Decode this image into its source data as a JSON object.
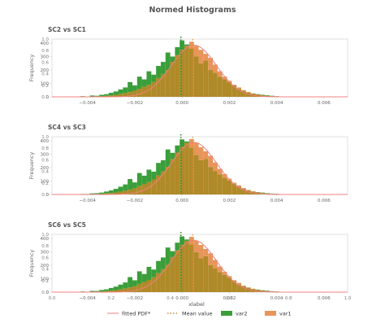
{
  "figure": {
    "title": "Normed Histograms",
    "xlabel": "xlabel",
    "legend": {
      "items": [
        {
          "label": "fitted PDF*",
          "kind": "line",
          "color": "#f08080"
        },
        {
          "label": "Mean value",
          "kind": "dotted",
          "color": "#e08a3c"
        },
        {
          "label": "var2",
          "kind": "patch",
          "color": "#3a9e3a"
        },
        {
          "label": "var1",
          "kind": "patch",
          "color": "#e8955a"
        }
      ]
    }
  },
  "colors": {
    "var2": "#3a9e3a",
    "var1": "#e8955a",
    "overlap": "#b08a28",
    "pdf": "#f08080",
    "mean2": "#2e8b2e",
    "mean1": "#e08a3c",
    "axis": "#cccccc",
    "tick_text": "#666666",
    "title_text": "#555555"
  },
  "chart_data": [
    {
      "type": "bar",
      "title": "SC2 vs SC1",
      "ylabel": "Frequency",
      "xlim": [
        -0.0055,
        0.007
      ],
      "ylim": [
        0,
        430
      ],
      "xticks": [
        -0.004,
        -0.002,
        0.0,
        0.002,
        0.004,
        0.006
      ],
      "xtick_labels": [
        "−0.004",
        "−0.002",
        "0.000",
        "0.002",
        "0.004",
        "0.006"
      ],
      "yticks": [
        0,
        100,
        200,
        300,
        400
      ],
      "ytick_labels": [
        "0",
        "100",
        "200",
        "300",
        "400"
      ],
      "secondary_yticks": [
        0.0,
        0.2,
        0.4,
        0.6,
        0.8,
        1.0
      ],
      "secondary_ytick_labels": [
        "0.0",
        "0.2",
        "0.4",
        "0.6",
        "0.8",
        "1.0"
      ],
      "bin_width": 0.0002,
      "bin_centers": [
        -0.005,
        -0.0042,
        -0.004,
        -0.0038,
        -0.0036,
        -0.0034,
        -0.0032,
        -0.003,
        -0.0028,
        -0.0026,
        -0.0024,
        -0.0022,
        -0.002,
        -0.0018,
        -0.0016,
        -0.0014,
        -0.0012,
        -0.001,
        -0.0008,
        -0.0006,
        -0.0004,
        -0.0002,
        0.0,
        0.0002,
        0.0004,
        0.0006,
        0.0008,
        0.001,
        0.0012,
        0.0014,
        0.0016,
        0.0018,
        0.002,
        0.0022,
        0.0024,
        0.0026,
        0.0028,
        0.003,
        0.0032,
        0.0034,
        0.0036,
        0.0038,
        0.004,
        0.0042,
        0.0044,
        0.0046,
        0.0048,
        0.0065
      ],
      "series": [
        {
          "name": "var2",
          "values": [
            2,
            5,
            3,
            10,
            8,
            15,
            20,
            30,
            40,
            55,
            70,
            110,
            85,
            150,
            130,
            190,
            165,
            230,
            260,
            330,
            300,
            370,
            420,
            390,
            360,
            300,
            250,
            270,
            200,
            180,
            150,
            130,
            110,
            85,
            60,
            45,
            35,
            25,
            20,
            15,
            12,
            8,
            5,
            3,
            2,
            2,
            1,
            3
          ]
        },
        {
          "name": "var1",
          "values": [
            1,
            2,
            2,
            3,
            4,
            6,
            8,
            10,
            15,
            20,
            28,
            35,
            45,
            60,
            75,
            90,
            110,
            140,
            170,
            200,
            260,
            310,
            350,
            380,
            410,
            380,
            350,
            320,
            290,
            240,
            190,
            150,
            120,
            90,
            70,
            50,
            35,
            25,
            18,
            12,
            8,
            5,
            4,
            2,
            1,
            1,
            0,
            0
          ]
        }
      ],
      "fitted_pdf": {
        "mean": 0.0005,
        "std": 0.00095,
        "peak": 385
      },
      "means": {
        "var2": -5e-05,
        "var1": 0.00045
      }
    },
    {
      "type": "bar",
      "title": "SC4 vs SC3",
      "ylabel": "Frequency",
      "xlim": [
        -0.0055,
        0.007
      ],
      "ylim": [
        0,
        430
      ],
      "xticks": [
        -0.004,
        -0.002,
        0.0,
        0.002,
        0.004,
        0.006
      ],
      "xtick_labels": [
        "−0.004",
        "−0.002",
        "0.000",
        "0.002",
        "0.004",
        "0.006"
      ],
      "yticks": [
        0,
        100,
        200,
        300,
        400
      ],
      "ytick_labels": [
        "0",
        "100",
        "200",
        "300",
        "400"
      ],
      "secondary_yticks": [
        0.0,
        0.2,
        0.4,
        0.6,
        0.8,
        1.0
      ],
      "secondary_ytick_labels": [
        "0.0",
        "0.2",
        "0.4",
        "0.6",
        "0.8",
        "1.0"
      ],
      "bin_width": 0.0002,
      "bin_centers": [
        -0.005,
        -0.0042,
        -0.004,
        -0.0038,
        -0.0036,
        -0.0034,
        -0.0032,
        -0.003,
        -0.0028,
        -0.0026,
        -0.0024,
        -0.0022,
        -0.002,
        -0.0018,
        -0.0016,
        -0.0014,
        -0.0012,
        -0.001,
        -0.0008,
        -0.0006,
        -0.0004,
        -0.0002,
        0.0,
        0.0002,
        0.0004,
        0.0006,
        0.0008,
        0.001,
        0.0012,
        0.0014,
        0.0016,
        0.0018,
        0.002,
        0.0022,
        0.0024,
        0.0026,
        0.0028,
        0.003,
        0.0032,
        0.0034,
        0.0036,
        0.0038,
        0.004,
        0.0042,
        0.0044,
        0.0046,
        0.0048,
        0.0065
      ],
      "series": [
        {
          "name": "var2",
          "values": [
            2,
            4,
            4,
            8,
            10,
            14,
            22,
            30,
            42,
            58,
            75,
            115,
            90,
            160,
            140,
            185,
            170,
            235,
            255,
            335,
            310,
            365,
            410,
            395,
            350,
            295,
            255,
            265,
            205,
            175,
            150,
            125,
            105,
            80,
            58,
            42,
            32,
            22,
            18,
            14,
            10,
            7,
            5,
            3,
            2,
            1,
            1,
            3
          ]
        },
        {
          "name": "var1",
          "values": [
            1,
            2,
            2,
            3,
            4,
            6,
            8,
            11,
            15,
            21,
            28,
            36,
            46,
            62,
            76,
            92,
            112,
            142,
            172,
            205,
            262,
            312,
            355,
            385,
            412,
            385,
            352,
            322,
            288,
            238,
            190,
            152,
            118,
            88,
            68,
            48,
            34,
            24,
            17,
            11,
            7,
            5,
            3,
            2,
            1,
            1,
            0,
            0
          ]
        }
      ],
      "fitted_pdf": {
        "mean": 0.0005,
        "std": 0.00095,
        "peak": 388
      },
      "means": {
        "var2": -5e-05,
        "var1": 0.00045
      }
    },
    {
      "type": "bar",
      "title": "SC6 vs SC5",
      "ylabel": "Frequency",
      "xlim": [
        -0.0055,
        0.007
      ],
      "ylim": [
        0,
        430
      ],
      "xticks": [
        -0.004,
        -0.002,
        0.0,
        0.002,
        0.004,
        0.006
      ],
      "xtick_labels": [
        "−0.004",
        "−0.002",
        "0.000",
        "0.002",
        "0.004",
        "0.006"
      ],
      "yticks": [
        0,
        100,
        200,
        300,
        400
      ],
      "ytick_labels": [
        "0",
        "100",
        "200",
        "300",
        "400"
      ],
      "secondary_xticks": [
        0.0,
        0.2,
        0.4,
        0.6,
        0.8,
        1.0
      ],
      "secondary_xtick_labels": [
        "0.0",
        "0.2",
        "0.4",
        "0.6",
        "0.8",
        "1.0"
      ],
      "secondary_yticks": [
        0.0,
        0.2,
        0.4,
        0.6,
        0.8,
        1.0
      ],
      "secondary_ytick_labels": [
        "0.0",
        "0.2",
        "0.4",
        "0.6",
        "0.8",
        "1.0"
      ],
      "bin_width": 0.0002,
      "bin_centers": [
        -0.005,
        -0.0042,
        -0.004,
        -0.0038,
        -0.0036,
        -0.0034,
        -0.0032,
        -0.003,
        -0.0028,
        -0.0026,
        -0.0024,
        -0.0022,
        -0.002,
        -0.0018,
        -0.0016,
        -0.0014,
        -0.0012,
        -0.001,
        -0.0008,
        -0.0006,
        -0.0004,
        -0.0002,
        0.0,
        0.0002,
        0.0004,
        0.0006,
        0.0008,
        0.001,
        0.0012,
        0.0014,
        0.0016,
        0.0018,
        0.002,
        0.0022,
        0.0024,
        0.0026,
        0.0028,
        0.003,
        0.0032,
        0.0034,
        0.0036,
        0.0038,
        0.004,
        0.0042,
        0.0044,
        0.0046,
        0.0048,
        0.0065
      ],
      "series": [
        {
          "name": "var2",
          "values": [
            2,
            5,
            3,
            9,
            9,
            16,
            21,
            31,
            41,
            56,
            72,
            112,
            88,
            155,
            135,
            188,
            168,
            232,
            258,
            332,
            305,
            368,
            415,
            392,
            355,
            298,
            252,
            268,
            202,
            178,
            148,
            128,
            108,
            82,
            59,
            44,
            33,
            24,
            19,
            14,
            11,
            7,
            5,
            3,
            2,
            1,
            1,
            3
          ]
        },
        {
          "name": "var1",
          "values": [
            1,
            2,
            2,
            3,
            4,
            6,
            8,
            10,
            15,
            20,
            28,
            35,
            45,
            61,
            75,
            91,
            111,
            141,
            171,
            202,
            261,
            311,
            352,
            382,
            411,
            382,
            351,
            321,
            289,
            239,
            190,
            151,
            119,
            89,
            69,
            49,
            35,
            25,
            18,
            12,
            8,
            5,
            4,
            2,
            1,
            1,
            0,
            0
          ]
        }
      ],
      "fitted_pdf": {
        "mean": 0.0005,
        "std": 0.00095,
        "peak": 386
      },
      "means": {
        "var2": -5e-05,
        "var1": 0.00045
      }
    }
  ]
}
